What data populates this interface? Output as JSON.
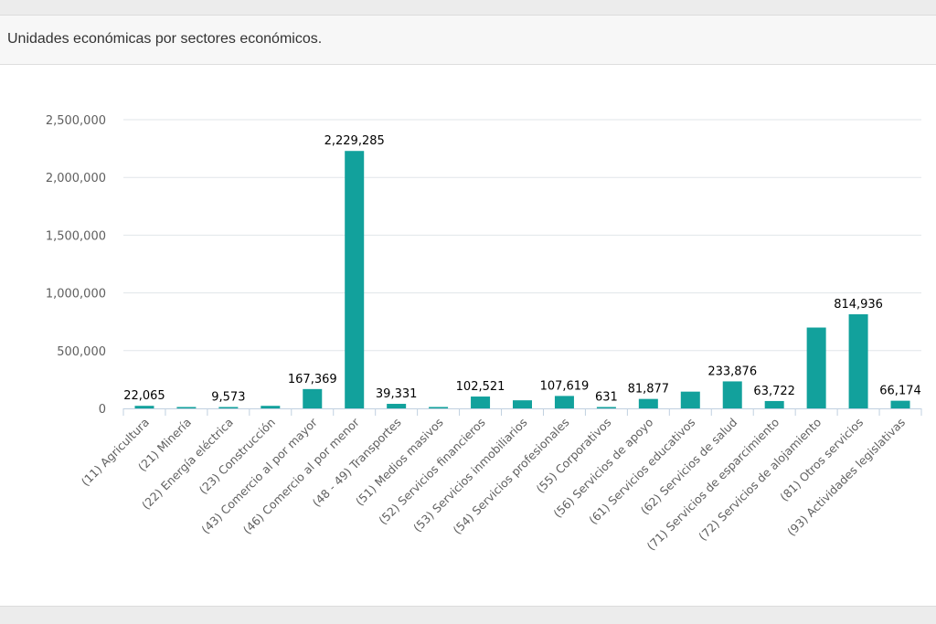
{
  "panel": {
    "title": "Unidades económicas por sectores económicos."
  },
  "colors": {
    "bar": "#12a19c",
    "grid": "#e1e6ea",
    "axis": "#c0d0e0",
    "tick_label": "#606060",
    "data_label": "#000000"
  },
  "chart_data": {
    "type": "bar",
    "title": "",
    "xlabel": "",
    "ylabel": "",
    "ylim": [
      0,
      2500000
    ],
    "y_ticks": [
      0,
      500000,
      1000000,
      1500000,
      2000000,
      2500000
    ],
    "y_tick_labels": [
      "0",
      "500,000",
      "1,000,000",
      "1,500,000",
      "2,000,000",
      "2,500,000"
    ],
    "grid": true,
    "legend": "none",
    "categories": [
      "(11) Agricultura",
      "(21) Minería",
      "(22) Energía eléctrica",
      "(23) Construcción",
      "(43) Comercio al por mayor",
      "(46) Comercio al por menor",
      "(48 - 49) Transportes",
      "(51) Medios masivos",
      "(52) Servicios financieros",
      "(53) Servicios inmobiliarios",
      "(54) Servicios profesionales",
      "(55) Corporativos",
      "(56) Servicios de apoyo",
      "(61) Servicios educativos",
      "(62) Servicios de salud",
      "(71) Servicios de esparcimiento",
      "(72) Servicios de alojamiento",
      "(81) Otros servicios",
      "(93) Actividades legislativas"
    ],
    "values": [
      22065,
      2500,
      9573,
      22000,
      167369,
      2229285,
      39331,
      12000,
      102521,
      70000,
      107619,
      631,
      81877,
      145000,
      233876,
      63722,
      700000,
      814936,
      66174
    ],
    "data_labels": [
      "22,065",
      "",
      "9,573",
      "",
      "167,369",
      "2,229,285",
      "39,331",
      "",
      "102,521",
      "",
      "107,619",
      "631",
      "81,877",
      "",
      "233,876",
      "63,722",
      "",
      "814,936",
      "66,174"
    ]
  }
}
